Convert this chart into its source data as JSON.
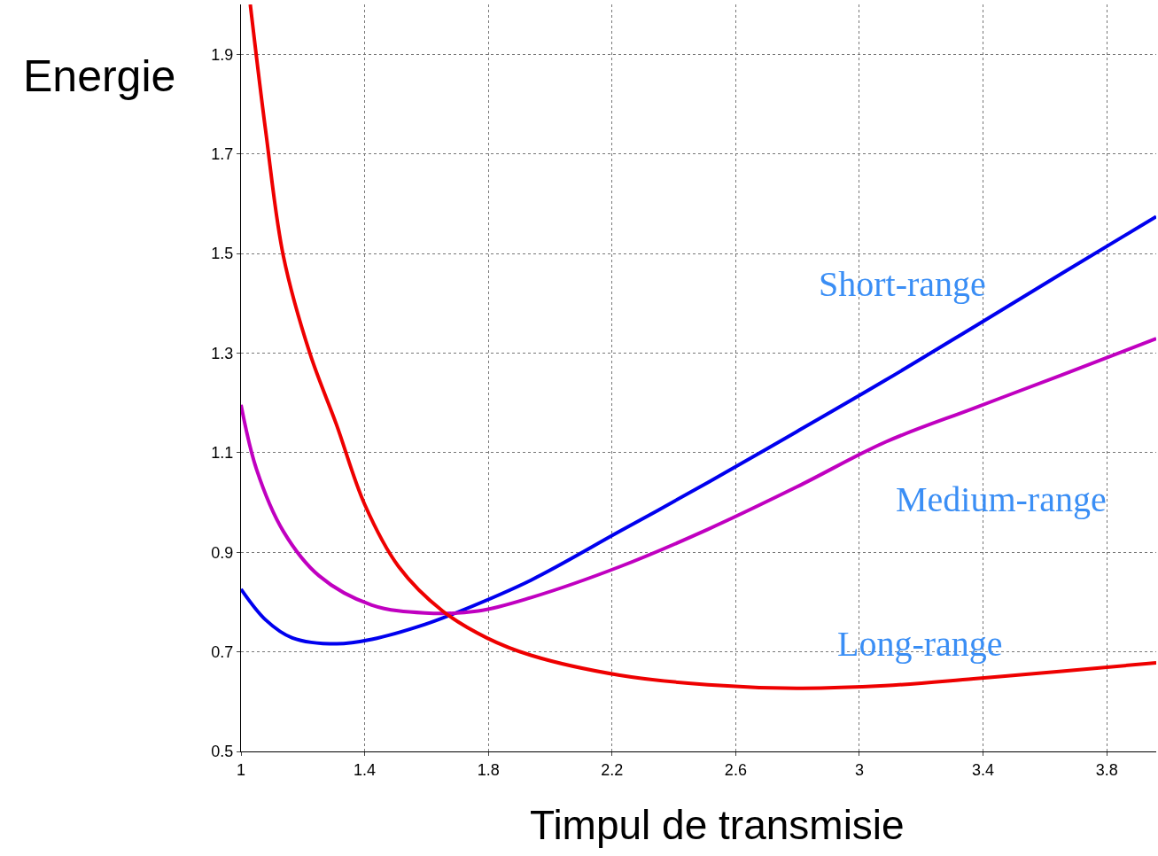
{
  "chart_data": {
    "type": "line",
    "xlabel": "Timpul de transmisie",
    "ylabel": "Energie",
    "xlim": [
      1,
      3.96
    ],
    "ylim": [
      0.5,
      2.0
    ],
    "xticks": [
      1,
      1.4,
      1.8,
      2.2,
      2.6,
      3,
      3.4,
      3.8
    ],
    "yticks": [
      0.5,
      0.7,
      0.9,
      1.1,
      1.3,
      1.5,
      1.7,
      1.9
    ],
    "grid": true,
    "marker": "none",
    "line_style": "solid",
    "series": [
      {
        "color": "#0000ee",
        "x": [
          1,
          1.08,
          1.166,
          1.309,
          1.423,
          1.595,
          1.71,
          1.938,
          2.225,
          2.51,
          2.797,
          3.083,
          3.369,
          3.655,
          3.96
        ],
        "values": [
          0.826,
          0.764,
          0.728,
          0.716,
          0.725,
          0.755,
          0.782,
          0.844,
          0.942,
          1.04,
          1.142,
          1.245,
          1.352,
          1.46,
          1.574
        ]
      },
      {
        "color": "#c000c0",
        "x": [
          1,
          1.05,
          1.137,
          1.252,
          1.423,
          1.595,
          1.767,
          1.938,
          2.225,
          2.51,
          2.797,
          3.083,
          3.369,
          3.655,
          3.96
        ],
        "values": [
          1.196,
          1.067,
          0.942,
          0.853,
          0.794,
          0.778,
          0.782,
          0.809,
          0.871,
          0.946,
          1.031,
          1.121,
          1.189,
          1.256,
          1.329
        ]
      },
      {
        "color": "#ee0000",
        "x": [
          1.03,
          1.08,
          1.137,
          1.223,
          1.309,
          1.4,
          1.51,
          1.652,
          1.795,
          1.938,
          2.225,
          2.51,
          2.797,
          3.083,
          3.369,
          3.655,
          3.96
        ],
        "values": [
          2.0,
          1.745,
          1.495,
          1.299,
          1.156,
          0.996,
          0.871,
          0.782,
          0.728,
          0.693,
          0.653,
          0.634,
          0.627,
          0.632,
          0.646,
          0.661,
          0.678
        ]
      }
    ],
    "annotations": [
      "Short-range",
      "Medium-range",
      "Long-range"
    ]
  }
}
